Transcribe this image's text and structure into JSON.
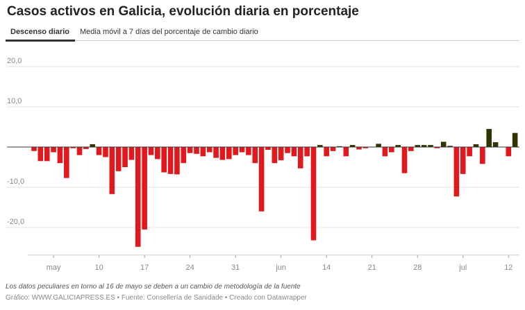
{
  "chart_data": {
    "type": "bar",
    "title": "Casos activos en Galicia, evolución diaria en porcentaje",
    "tabs": [
      "Descenso diario",
      "Media móvil a 7 días del porcentaje de cambio diario"
    ],
    "note": "Los datos peculiares en torno al 16 de mayo se deben a un cambio de metodología de la fuente",
    "source": "Gráfico: WWW.GALICIAPRESS.ES • Fuente: Consellería de Sanidade • Creado con Datawrapper",
    "categories": [
      null,
      null,
      null,
      "may",
      null,
      null,
      null,
      null,
      null,
      null,
      "10",
      null,
      null,
      null,
      null,
      null,
      null,
      "17",
      null,
      null,
      null,
      null,
      null,
      null,
      "24",
      null,
      null,
      null,
      null,
      null,
      null,
      "31",
      null,
      null,
      null,
      null,
      null,
      null,
      "jun",
      null,
      null,
      null,
      null,
      null,
      null,
      "14",
      null,
      null,
      null,
      null,
      null,
      null,
      "21",
      null,
      null,
      null,
      null,
      null,
      null,
      "28",
      null,
      null,
      null,
      null,
      null,
      null,
      "jul",
      null,
      null,
      null,
      null,
      null,
      null,
      "12",
      null
    ],
    "values": [
      -1,
      -3.5,
      -3.5,
      -1.3,
      -4,
      -7.7,
      -0.3,
      -2,
      -0.5,
      0.7,
      -2,
      -2.5,
      -11.7,
      -6,
      -5,
      -3.2,
      -24.8,
      -20.5,
      -2,
      -3,
      -6.3,
      -6.7,
      -6.8,
      -4,
      -1.5,
      -1.7,
      -2.3,
      -1.3,
      -2.7,
      -3.2,
      -3,
      -2,
      -1.3,
      -2,
      -4,
      -16,
      -0.7,
      -4,
      -3.3,
      -1.5,
      -2.3,
      -5.3,
      -2.3,
      -23.2,
      0.5,
      -2.3,
      -1,
      0.2,
      -2.3,
      0.5,
      -0.6,
      -0.3,
      0,
      0.8,
      -2.3,
      -1.3,
      0.5,
      -6.5,
      -1,
      0.5,
      0.5,
      0.5,
      -0.3,
      1.3,
      0.3,
      -12.3,
      -6.7,
      -2.3,
      0.7,
      -4.2,
      4.5,
      1.2,
      0,
      -2.3,
      3.5
    ],
    "negative_color": "#e0191f",
    "positive_color": "#333300",
    "ylim": [
      -26,
      22
    ],
    "yticks": [
      {
        "value": 20,
        "label": "20,0"
      },
      {
        "value": 10,
        "label": "10,0"
      },
      {
        "value": -10,
        "label": "-10,0"
      },
      {
        "value": -20,
        "label": "-20,0"
      }
    ],
    "grid": true
  }
}
